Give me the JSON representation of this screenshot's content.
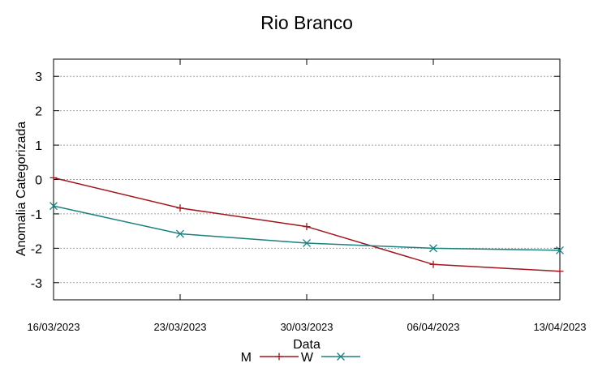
{
  "chart_data": {
    "type": "line",
    "title": "Rio Branco",
    "xlabel": "Data",
    "ylabel": "Anomalia Categorizada",
    "categories": [
      "16/03/2023",
      "23/03/2023",
      "30/03/2023",
      "06/04/2023",
      "13/04/2023"
    ],
    "y_ticks": [
      3,
      2,
      1,
      0,
      -1,
      -2,
      -3
    ],
    "ylim": [
      -3.5,
      3.5
    ],
    "grid": true,
    "legend_position": "bottom",
    "series": [
      {
        "name": "M",
        "color": "#a0161e",
        "marker": "plus",
        "values": [
          0.05,
          -0.83,
          -1.37,
          -2.47,
          -2.67
        ]
      },
      {
        "name": "W",
        "color": "#1a8080",
        "marker": "cross",
        "values": [
          -0.77,
          -1.58,
          -1.85,
          -2.0,
          -2.06
        ]
      }
    ]
  }
}
